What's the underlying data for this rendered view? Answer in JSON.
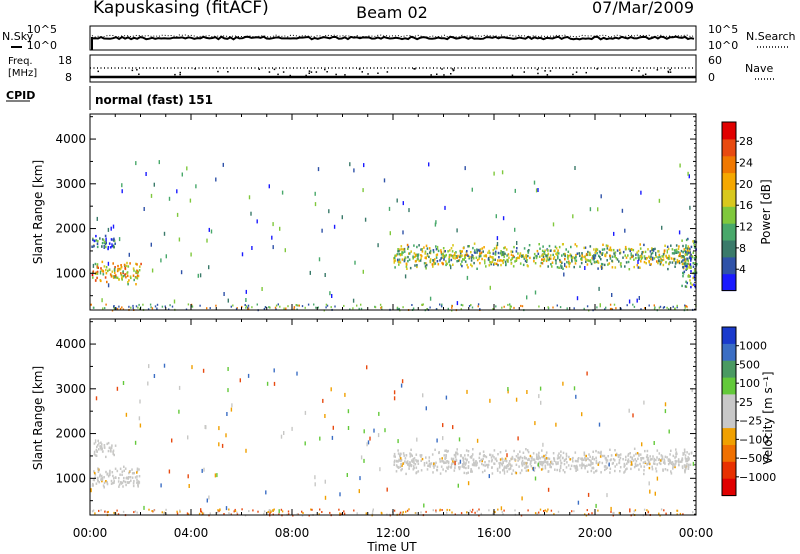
{
  "header": {
    "title": "Kapuskasing (fitACF)",
    "beam": "Beam 02",
    "date": "07/Mar/2009"
  },
  "noise_panel": {
    "left_label": "N.Sky",
    "right_label": "N.Search",
    "left_ticks": [
      "10^5",
      "10^0"
    ],
    "right_ticks": [
      "10^5",
      "10^0"
    ]
  },
  "freq_panel": {
    "left_label_lines": [
      "Freq.",
      "[MHz]"
    ],
    "left_ticks": [
      "18",
      "8"
    ],
    "right_label": "Nave",
    "right_ticks": [
      "60",
      "0"
    ]
  },
  "cpid_panel": {
    "label": "CPID",
    "mode_text": "normal (fast) 151"
  },
  "time_axis": {
    "label": "Time UT",
    "ticks": [
      "00:00",
      "04:00",
      "08:00",
      "12:00",
      "16:00",
      "20:00",
      "00:00"
    ]
  },
  "chart_data": [
    {
      "type": "heatmap",
      "title": "",
      "xlabel": "",
      "ylabel": "Slant Range [km]",
      "x_unit": "hours UT",
      "xlim": [
        0,
        24
      ],
      "ylim": [
        180,
        4560
      ],
      "y_ticks": [
        "1000",
        "2000",
        "3000",
        "4000"
      ],
      "colorbar": {
        "label": "Power [dB]",
        "ticks": [
          "4",
          "8",
          "12",
          "16",
          "20",
          "24",
          "28"
        ],
        "range": [
          0,
          31
        ],
        "colors": [
          "#1a1aff",
          "#2f52a8",
          "#3a7a6a",
          "#48a86a",
          "#7fc83c",
          "#d8c81e",
          "#f5a800",
          "#f07800",
          "#e84a10",
          "#e00000"
        ]
      },
      "regions": [
        {
          "name": "dawn_lower_band",
          "hours": [
            0.05,
            2.0
          ],
          "range_km": [
            780,
            1300
          ],
          "power_db": 20
        },
        {
          "name": "dawn_upper_band",
          "hours": [
            0.05,
            1.0
          ],
          "range_km": [
            1500,
            1900
          ],
          "power_db": 8
        },
        {
          "name": "afternoon_band",
          "hours": [
            12.0,
            23.8
          ],
          "range_km": [
            1100,
            1700
          ],
          "power_db": 14
        },
        {
          "name": "ground_scatter_edge",
          "hours": [
            23.4,
            24.0
          ],
          "range_km": [
            600,
            2000
          ],
          "power_db": 10
        }
      ]
    },
    {
      "type": "heatmap",
      "title": "",
      "xlabel": "Time UT",
      "ylabel": "Slant Range [km]",
      "x_unit": "hours UT",
      "xlim": [
        0,
        24
      ],
      "ylim": [
        180,
        4560
      ],
      "y_ticks": [
        "1000",
        "2000",
        "3000",
        "4000"
      ],
      "colorbar": {
        "label": "Velocity [m s⁻¹]",
        "ticks": [
          "1000",
          "500",
          "100",
          "25",
          "−25",
          "−100",
          "−500",
          "−1000"
        ],
        "colors": [
          "#1a3acc",
          "#3b6ec4",
          "#4a9a62",
          "#63c93a",
          "#c8c8c8",
          "#c8c8c8",
          "#f0a000",
          "#f07000",
          "#e83000",
          "#e00000"
        ]
      },
      "regions": [
        {
          "name": "dawn_lower_band",
          "hours": [
            0.05,
            2.0
          ],
          "range_km": [
            780,
            1300
          ],
          "velocity_ms": 0
        },
        {
          "name": "dawn_upper_band",
          "hours": [
            0.05,
            1.0
          ],
          "range_km": [
            1500,
            1900
          ],
          "velocity_ms": 0
        },
        {
          "name": "afternoon_band",
          "hours": [
            12.0,
            23.8
          ],
          "range_km": [
            1100,
            1700
          ],
          "velocity_ms": 0
        }
      ]
    }
  ]
}
